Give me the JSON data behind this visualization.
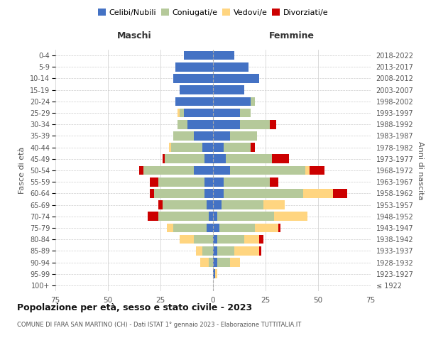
{
  "age_groups": [
    "100+",
    "95-99",
    "90-94",
    "85-89",
    "80-84",
    "75-79",
    "70-74",
    "65-69",
    "60-64",
    "55-59",
    "50-54",
    "45-49",
    "40-44",
    "35-39",
    "30-34",
    "25-29",
    "20-24",
    "15-19",
    "10-14",
    "5-9",
    "0-4"
  ],
  "birth_years": [
    "≤ 1922",
    "1923-1927",
    "1928-1932",
    "1933-1937",
    "1938-1942",
    "1943-1947",
    "1948-1952",
    "1953-1957",
    "1958-1962",
    "1963-1967",
    "1968-1972",
    "1973-1977",
    "1978-1982",
    "1983-1987",
    "1988-1992",
    "1993-1997",
    "1998-2002",
    "2003-2007",
    "2008-2012",
    "2013-2017",
    "2018-2022"
  ],
  "colors": {
    "celibi": "#4472c4",
    "coniugati": "#b5c99a",
    "vedovi": "#ffd580",
    "divorziati": "#cc0000"
  },
  "maschi": {
    "celibi": [
      0,
      0,
      0,
      0,
      0,
      3,
      2,
      3,
      4,
      4,
      9,
      4,
      5,
      9,
      12,
      14,
      18,
      16,
      19,
      18,
      14
    ],
    "coniugati": [
      0,
      0,
      2,
      5,
      9,
      16,
      24,
      21,
      24,
      22,
      24,
      19,
      15,
      10,
      5,
      2,
      0,
      0,
      0,
      0,
      0
    ],
    "vedovi": [
      0,
      0,
      4,
      3,
      7,
      3,
      0,
      0,
      0,
      0,
      0,
      0,
      1,
      0,
      0,
      1,
      0,
      0,
      0,
      0,
      0
    ],
    "divorziati": [
      0,
      0,
      0,
      0,
      0,
      0,
      5,
      2,
      2,
      4,
      2,
      1,
      0,
      0,
      0,
      0,
      0,
      0,
      0,
      0,
      0
    ]
  },
  "femmine": {
    "celibi": [
      0,
      1,
      2,
      2,
      2,
      3,
      2,
      4,
      5,
      5,
      8,
      6,
      5,
      8,
      13,
      13,
      18,
      15,
      22,
      17,
      10
    ],
    "coniugati": [
      0,
      0,
      6,
      8,
      13,
      17,
      27,
      20,
      38,
      22,
      36,
      22,
      13,
      13,
      14,
      5,
      2,
      0,
      0,
      0,
      0
    ],
    "vedovi": [
      0,
      1,
      5,
      12,
      7,
      11,
      16,
      10,
      14,
      0,
      2,
      0,
      0,
      0,
      0,
      0,
      0,
      0,
      0,
      0,
      0
    ],
    "divorziati": [
      0,
      0,
      0,
      1,
      2,
      1,
      0,
      0,
      7,
      4,
      7,
      8,
      2,
      0,
      3,
      0,
      0,
      0,
      0,
      0,
      0
    ]
  },
  "xlim": 75,
  "title": "Popolazione per età, sesso e stato civile - 2023",
  "subtitle": "COMUNE DI FARA SAN MARTINO (CH) - Dati ISTAT 1° gennaio 2023 - Elaborazione TUTTITALIA.IT",
  "xlabel_left": "Maschi",
  "xlabel_right": "Femmine",
  "ylabel_left": "Fasce di età",
  "ylabel_right": "Anni di nascita",
  "legend_labels": [
    "Celibi/Nubili",
    "Coniugati/e",
    "Vedovi/e",
    "Divorziati/e"
  ],
  "bg_color": "#ffffff",
  "grid_color": "#cccccc",
  "text_color": "#555555",
  "title_color": "#111111"
}
